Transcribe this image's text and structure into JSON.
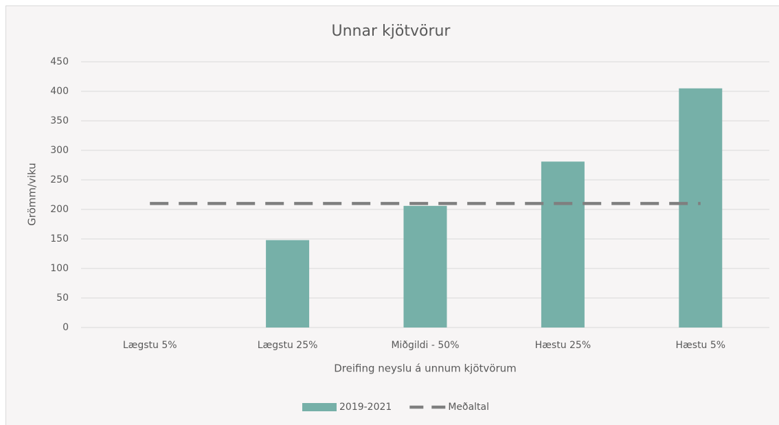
{
  "chart_data": {
    "type": "bar",
    "title": "Unnar kjötvörur",
    "x_label": "Dreifing neyslu á unnum kjötvörum",
    "y_label": "Grömm/viku",
    "categories": [
      "Lægstu 5%",
      "Lægstu 25%",
      "Miðgildi - 50%",
      "Hæstu 25%",
      "Hæstu 5%"
    ],
    "series": [
      {
        "name": "2019-2021",
        "type": "bar",
        "color": "#76b0a8",
        "values": [
          0,
          148,
          206,
          281,
          405
        ]
      },
      {
        "name": "Meðaltal",
        "type": "line",
        "dashed": true,
        "color": "#7f7f7f",
        "values": [
          210,
          210,
          210,
          210,
          210
        ]
      }
    ],
    "ylim": [
      0,
      450
    ],
    "yticks": [
      0,
      50,
      100,
      150,
      200,
      250,
      300,
      350,
      400,
      450
    ],
    "grid": true,
    "legend": "bottom"
  }
}
